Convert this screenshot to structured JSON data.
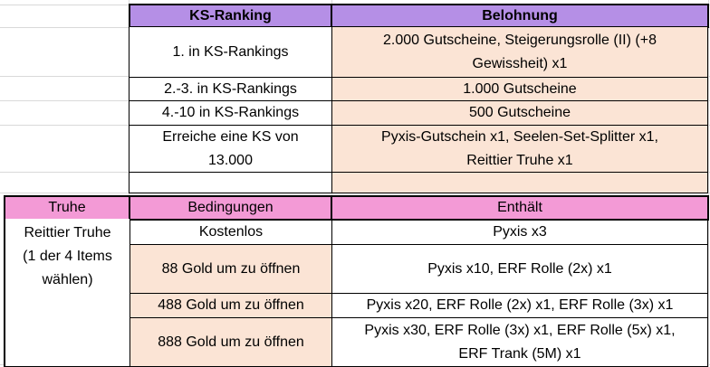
{
  "ranking": {
    "headers": {
      "rank": "KS-Ranking",
      "reward": "Belohnung"
    },
    "rows": [
      {
        "rank": "1. in KS-Rankings",
        "reward": "2.000 Gutscheine, Steigerungsrolle (II) (+8 Gewissheit) x1"
      },
      {
        "rank": "2.-3. in KS-Rankings",
        "reward": "1.000 Gutscheine"
      },
      {
        "rank": "4.-10 in KS-Rankings",
        "reward": "500 Gutscheine"
      },
      {
        "rank": "Erreiche eine KS von 13.000",
        "reward": "Pyxis-Gutschein x1, Seelen-Set-Splitter x1, Reittier Truhe x1"
      }
    ]
  },
  "chest": {
    "headers": {
      "chest": "Truhe",
      "conditions": "Bedingungen",
      "contains": "Enthält"
    },
    "name": "Reittier Truhe",
    "note": "(1 der 4 Items wählen)",
    "rows": [
      {
        "condition": "Kostenlos",
        "contents": "Pyxis x3"
      },
      {
        "condition": "88 Gold um zu öffnen",
        "contents": "Pyxis x10, ERF Rolle (2x) x1"
      },
      {
        "condition": "488 Gold um zu öffnen",
        "contents": "Pyxis x20, ERF Rolle (2x) x1, ERF Rolle (3x) x1"
      },
      {
        "condition": "888 Gold um zu öffnen",
        "contents": "Pyxis x30, ERF Rolle (3x) x1, ERF Rolle (5x) x1, ERF Trank (5M) x1"
      }
    ]
  },
  "colors": {
    "header_purple": "#b58fe6",
    "header_pink": "#f39ad6",
    "peach": "#fbe4d5",
    "border": "#000000",
    "gridline": "#d9d9d9"
  }
}
